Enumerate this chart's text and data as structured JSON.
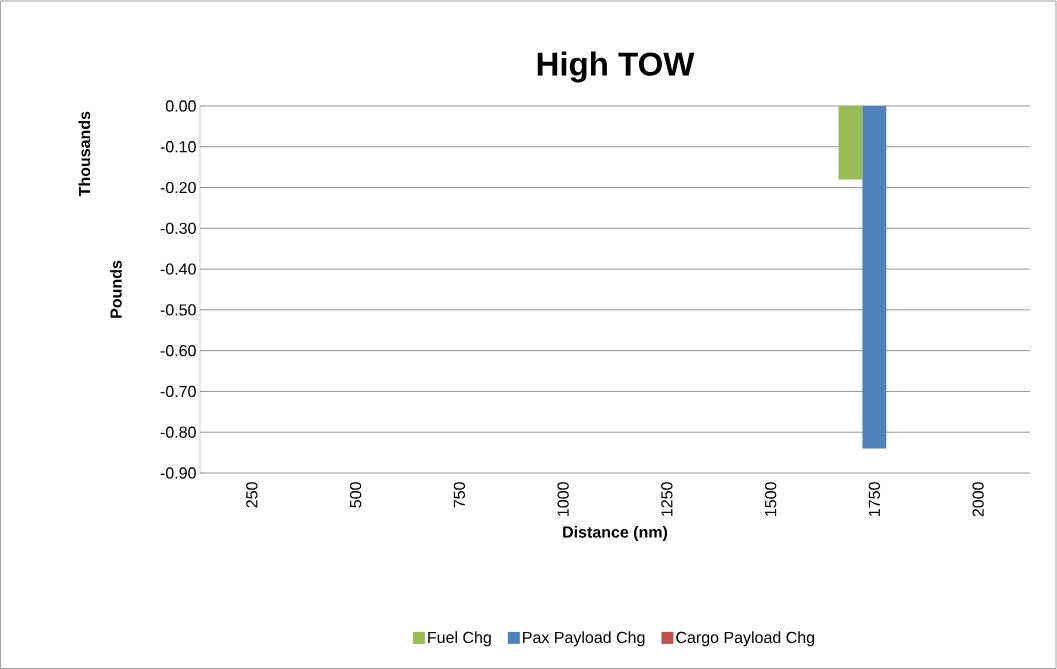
{
  "chart_data": {
    "type": "bar",
    "title": "High TOW",
    "xlabel": "Distance (nm)",
    "ylabel": "Pounds",
    "annotations": [
      "Thousands"
    ],
    "categories": [
      "250",
      "500",
      "750",
      "1000",
      "1250",
      "1500",
      "1750",
      "2000"
    ],
    "series": [
      {
        "name": "Fuel Chg",
        "color": "#9bbb59",
        "values": [
          0,
          0,
          0,
          0,
          0,
          0,
          -0.18,
          0
        ]
      },
      {
        "name": "Pax Payload Chg",
        "color": "#4f81bd",
        "values": [
          0,
          0,
          0,
          0,
          0,
          0,
          -0.84,
          0
        ]
      },
      {
        "name": "Cargo Payload Chg",
        "color": "#c0504d",
        "values": [
          0,
          0,
          0,
          0,
          0,
          0,
          0,
          0
        ]
      }
    ],
    "ylim": [
      -0.9,
      0
    ],
    "yticks": [
      {
        "value": 0,
        "label": "0.00"
      },
      {
        "value": -0.1,
        "label": "-0.10"
      },
      {
        "value": -0.2,
        "label": "-0.20"
      },
      {
        "value": -0.3,
        "label": "-0.30"
      },
      {
        "value": -0.4,
        "label": "-0.40"
      },
      {
        "value": -0.5,
        "label": "-0.50"
      },
      {
        "value": -0.6,
        "label": "-0.60"
      },
      {
        "value": -0.7,
        "label": "-0.70"
      },
      {
        "value": -0.8,
        "label": "-0.80"
      },
      {
        "value": -0.9,
        "label": "-0.90"
      }
    ],
    "grid": "y",
    "legend": "bottom"
  }
}
